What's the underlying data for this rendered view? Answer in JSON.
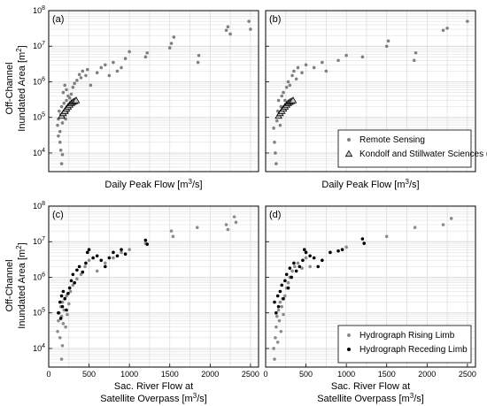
{
  "figure": {
    "ylabel_line1": "Off-Channel",
    "ylabel_line2": "Inundated Area [m",
    "ylabel_sup": "2",
    "ylabel_close": "]"
  },
  "colors": {
    "remote_sensing": "#808080",
    "kondolf_marker_fill": "#c8c8c8",
    "rising_limb": "#8c8c8c",
    "receding_limb": "#000000",
    "grid": "#d9d9d9",
    "axis": "#000000"
  },
  "chart_data": [
    {
      "panel": "(a)",
      "type": "scatter",
      "xlabel": "Daily Peak Flow [m³/s]",
      "ylabel": "Off-Channel Inundated Area [m²]",
      "xlim": [
        0,
        2600
      ],
      "ylim": [
        3000,
        100000000
      ],
      "yscale": "log",
      "x_ticklabels_shown": false,
      "grid": true,
      "legend": null,
      "series": [
        {
          "name": "Remote Sensing",
          "marker": "dot",
          "color": "#808080",
          "points": [
            [
              110,
              60000
            ],
            [
              120,
              90000
            ],
            [
              130,
              150000
            ],
            [
              140,
              40000
            ],
            [
              150,
              120000
            ],
            [
              160,
              200000
            ],
            [
              170,
              70000
            ],
            [
              180,
              110000
            ],
            [
              190,
              250000
            ],
            [
              200,
              160000
            ],
            [
              210,
              90000
            ],
            [
              220,
              300000
            ],
            [
              230,
              140000
            ],
            [
              240,
              400000
            ],
            [
              250,
              200000
            ],
            [
              120,
              30000
            ],
            [
              140,
              20000
            ],
            [
              150,
              12000
            ],
            [
              160,
              5000
            ],
            [
              170,
              9000
            ],
            [
              180,
              500000
            ],
            [
              200,
              800000
            ],
            [
              220,
              600000
            ],
            [
              260,
              350000
            ],
            [
              280,
              450000
            ],
            [
              300,
              700000
            ],
            [
              320,
              900000
            ],
            [
              350,
              1100000
            ],
            [
              380,
              1600000
            ],
            [
              400,
              1300000
            ],
            [
              420,
              2000000
            ],
            [
              460,
              1500000
            ],
            [
              480,
              2200000
            ],
            [
              520,
              800000
            ],
            [
              600,
              1800000
            ],
            [
              650,
              2500000
            ],
            [
              700,
              3000000
            ],
            [
              750,
              1500000
            ],
            [
              800,
              3500000
            ],
            [
              850,
              2000000
            ],
            [
              900,
              2500000
            ],
            [
              950,
              4500000
            ],
            [
              1000,
              7000000
            ],
            [
              1200,
              5000000
            ],
            [
              1220,
              6500000
            ],
            [
              1500,
              9000000
            ],
            [
              1520,
              12000000
            ],
            [
              1550,
              18000000
            ],
            [
              1850,
              3500000
            ],
            [
              1860,
              5500000
            ],
            [
              2200,
              28000000
            ],
            [
              2220,
              35000000
            ],
            [
              2250,
              22000000
            ],
            [
              2480,
              50000000
            ],
            [
              2500,
              30000000
            ]
          ]
        },
        {
          "name": "Kondolf and Stillwater Sciences (2007)",
          "marker": "triangle",
          "color": "#c8c8c8",
          "points": [
            [
              160,
              110000
            ],
            [
              180,
              130000
            ],
            [
              200,
              150000
            ],
            [
              220,
              175000
            ],
            [
              240,
              200000
            ],
            [
              260,
              225000
            ],
            [
              280,
              250000
            ],
            [
              300,
              270000
            ],
            [
              320,
              285000
            ],
            [
              340,
              300000
            ]
          ]
        }
      ]
    },
    {
      "panel": "(b)",
      "type": "scatter",
      "xlabel": "Daily Peak Flow [m³/s]",
      "xlim": [
        0,
        2600
      ],
      "ylim": [
        3000,
        100000000
      ],
      "yscale": "log",
      "x_ticklabels_shown": false,
      "y_ticklabels_shown": false,
      "grid": true,
      "legend": "bottom-right",
      "series": [
        {
          "name": "Remote Sensing",
          "marker": "dot",
          "color": "#808080",
          "points": [
            [
              100,
              50000
            ],
            [
              110,
              20000
            ],
            [
              120,
              10000
            ],
            [
              130,
              5000
            ],
            [
              140,
              80000
            ],
            [
              150,
              150000
            ],
            [
              160,
              300000
            ],
            [
              170,
              120000
            ],
            [
              180,
              60000
            ],
            [
              190,
              200000
            ],
            [
              200,
              400000
            ],
            [
              220,
              500000
            ],
            [
              240,
              300000
            ],
            [
              260,
              700000
            ],
            [
              280,
              1000000
            ],
            [
              300,
              800000
            ],
            [
              330,
              1500000
            ],
            [
              350,
              2000000
            ],
            [
              380,
              1200000
            ],
            [
              400,
              2500000
            ],
            [
              450,
              1800000
            ],
            [
              500,
              3000000
            ],
            [
              600,
              2500000
            ],
            [
              700,
              3500000
            ],
            [
              750,
              2000000
            ],
            [
              900,
              4000000
            ],
            [
              1000,
              5500000
            ],
            [
              1200,
              5000000
            ],
            [
              1500,
              10000000
            ],
            [
              1520,
              14000000
            ],
            [
              1840,
              4000000
            ],
            [
              1860,
              6500000
            ],
            [
              2200,
              28000000
            ],
            [
              2250,
              32000000
            ],
            [
              2500,
              50000000
            ]
          ]
        },
        {
          "name": "Kondolf and Stillwater Sciences (2007)",
          "marker": "triangle",
          "color": "#c8c8c8",
          "points": [
            [
              160,
              110000
            ],
            [
              180,
              130000
            ],
            [
              200,
              150000
            ],
            [
              220,
              175000
            ],
            [
              240,
              200000
            ],
            [
              260,
              225000
            ],
            [
              280,
              250000
            ],
            [
              300,
              270000
            ],
            [
              320,
              285000
            ],
            [
              340,
              300000
            ]
          ]
        }
      ]
    },
    {
      "panel": "(c)",
      "type": "scatter",
      "xlabel_line1": "Sac. River Flow at",
      "xlabel_line2": "Satellite Overpass [m³/s]",
      "ylabel": "Off-Channel Inundated Area [m²]",
      "xlim": [
        0,
        2600
      ],
      "ylim": [
        3000,
        100000000
      ],
      "yscale": "log",
      "x_ticks": [
        0,
        500,
        1000,
        1500,
        2000,
        2500
      ],
      "grid": true,
      "legend": null,
      "series": [
        {
          "name": "Hydrograph Rising Limb",
          "marker": "dot",
          "color": "#8c8c8c",
          "points": [
            [
              110,
              30000
            ],
            [
              120,
              60000
            ],
            [
              130,
              100000
            ],
            [
              140,
              20000
            ],
            [
              150,
              150000
            ],
            [
              160,
              80000
            ],
            [
              170,
              200000
            ],
            [
              180,
              50000
            ],
            [
              190,
              120000
            ],
            [
              200,
              250000
            ],
            [
              210,
              40000
            ],
            [
              220,
              300000
            ],
            [
              230,
              90000
            ],
            [
              250,
              180000
            ],
            [
              270,
              400000
            ],
            [
              160,
              5000
            ],
            [
              170,
              12000
            ],
            [
              300,
              600000
            ],
            [
              350,
              900000
            ],
            [
              400,
              1200000
            ],
            [
              450,
              2000000
            ],
            [
              500,
              3000000
            ],
            [
              600,
              1500000
            ],
            [
              700,
              2500000
            ],
            [
              800,
              3500000
            ],
            [
              900,
              5000000
            ],
            [
              1000,
              6000000
            ],
            [
              1200,
              9000000
            ],
            [
              1520,
              20000000
            ],
            [
              1540,
              14000000
            ],
            [
              1840,
              25000000
            ],
            [
              2200,
              30000000
            ],
            [
              2220,
              22000000
            ],
            [
              2300,
              50000000
            ],
            [
              2320,
              35000000
            ]
          ]
        },
        {
          "name": "Hydrograph Receding Limb",
          "marker": "dot",
          "color": "#000000",
          "points": [
            [
              120,
              100000
            ],
            [
              140,
              200000
            ],
            [
              150,
              70000
            ],
            [
              160,
              300000
            ],
            [
              170,
              150000
            ],
            [
              180,
              400000
            ],
            [
              200,
              250000
            ],
            [
              220,
              120000
            ],
            [
              240,
              350000
            ],
            [
              260,
              500000
            ],
            [
              280,
              800000
            ],
            [
              300,
              1200000
            ],
            [
              320,
              700000
            ],
            [
              350,
              1600000
            ],
            [
              380,
              2000000
            ],
            [
              420,
              1400000
            ],
            [
              460,
              2500000
            ],
            [
              480,
              5000000
            ],
            [
              500,
              6000000
            ],
            [
              550,
              3500000
            ],
            [
              600,
              4000000
            ],
            [
              650,
              3000000
            ],
            [
              700,
              2000000
            ],
            [
              750,
              3500000
            ],
            [
              800,
              5000000
            ],
            [
              850,
              4000000
            ],
            [
              900,
              6000000
            ],
            [
              950,
              4500000
            ],
            [
              1200,
              11000000
            ],
            [
              1220,
              8500000
            ]
          ]
        }
      ]
    },
    {
      "panel": "(d)",
      "type": "scatter",
      "xlabel_line1": "Sac. River Flow at",
      "xlabel_line2": "Satellite Overpass [m³/s]",
      "xlim": [
        0,
        2600
      ],
      "ylim": [
        3000,
        100000000
      ],
      "yscale": "log",
      "x_ticks": [
        0,
        500,
        1000,
        1500,
        2000,
        2500
      ],
      "y_ticklabels_shown": false,
      "grid": true,
      "legend": "bottom-right",
      "series": [
        {
          "name": "Hydrograph Rising Limb",
          "marker": "dot",
          "color": "#8c8c8c",
          "points": [
            [
              100,
              10000
            ],
            [
              110,
              5000
            ],
            [
              120,
              20000
            ],
            [
              130,
              40000
            ],
            [
              140,
              80000
            ],
            [
              150,
              15000
            ],
            [
              160,
              120000
            ],
            [
              170,
              60000
            ],
            [
              180,
              200000
            ],
            [
              190,
              30000
            ],
            [
              200,
              150000
            ],
            [
              210,
              250000
            ],
            [
              220,
              90000
            ],
            [
              240,
              300000
            ],
            [
              260,
              500000
            ],
            [
              280,
              700000
            ],
            [
              300,
              1000000
            ],
            [
              330,
              1500000
            ],
            [
              360,
              2000000
            ],
            [
              400,
              2500000
            ],
            [
              450,
              1800000
            ],
            [
              500,
              3500000
            ],
            [
              550,
              2000000
            ],
            [
              700,
              3000000
            ],
            [
              1000,
              7000000
            ],
            [
              1500,
              14000000
            ],
            [
              1850,
              25000000
            ],
            [
              2200,
              30000000
            ],
            [
              2300,
              45000000
            ]
          ]
        },
        {
          "name": "Hydrograph Receding Limb",
          "marker": "dot",
          "color": "#000000",
          "points": [
            [
              110,
              200000
            ],
            [
              130,
              100000
            ],
            [
              150,
              300000
            ],
            [
              160,
              150000
            ],
            [
              180,
              400000
            ],
            [
              200,
              600000
            ],
            [
              220,
              250000
            ],
            [
              240,
              800000
            ],
            [
              260,
              1200000
            ],
            [
              280,
              500000
            ],
            [
              300,
              1800000
            ],
            [
              320,
              1000000
            ],
            [
              350,
              2500000
            ],
            [
              380,
              1500000
            ],
            [
              420,
              2000000
            ],
            [
              460,
              3000000
            ],
            [
              480,
              6000000
            ],
            [
              500,
              5000000
            ],
            [
              550,
              4000000
            ],
            [
              600,
              3500000
            ],
            [
              650,
              2000000
            ],
            [
              700,
              3000000
            ],
            [
              800,
              5000000
            ],
            [
              900,
              5500000
            ],
            [
              950,
              6000000
            ],
            [
              1200,
              12000000
            ],
            [
              1220,
              9000000
            ]
          ]
        }
      ]
    }
  ]
}
